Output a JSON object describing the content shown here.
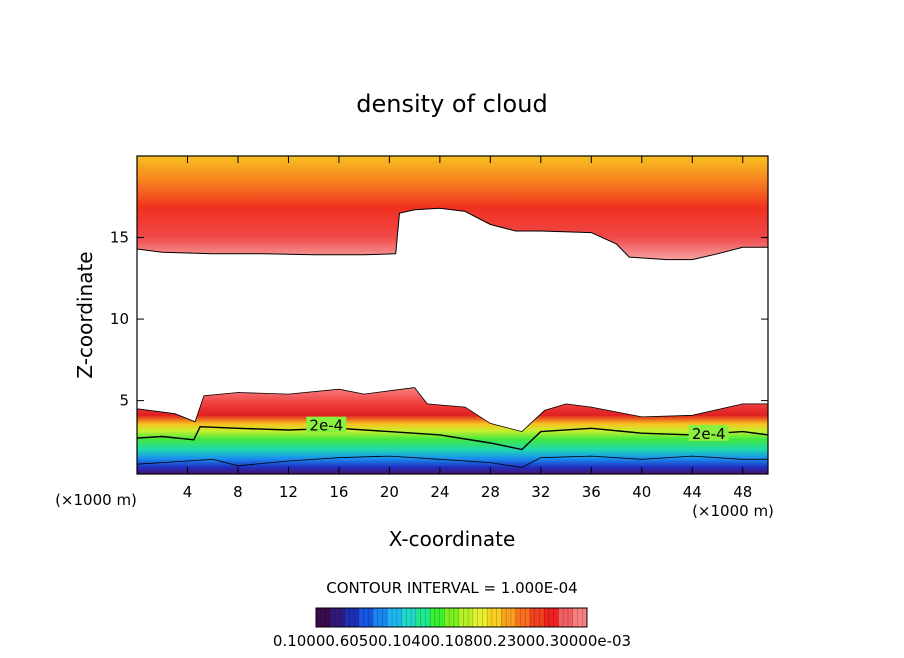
{
  "chart_data": {
    "type": "heatmap",
    "title": "density of cloud",
    "xlabel": "X-coordinate",
    "ylabel": "Z-coordinate",
    "x_unit": "(×1000 m)",
    "y_unit": "(×1000 m)",
    "xlim": [
      0,
      50
    ],
    "ylim": [
      0.5,
      20
    ],
    "x_ticks": [
      4,
      8,
      12,
      16,
      20,
      24,
      28,
      32,
      36,
      40,
      44,
      48
    ],
    "y_ticks": [
      5,
      10,
      15
    ],
    "contour_interval_text": "CONTOUR INTERVAL = 1.000E-04",
    "contour_labels": [
      {
        "text": "2e-4",
        "x": 15.0,
        "z": 3.4
      },
      {
        "text": "2e-4",
        "x": 45.3,
        "z": 2.9
      }
    ],
    "upper_cloud_base": [
      {
        "x": 0,
        "z": 14.3
      },
      {
        "x": 2,
        "z": 14.1
      },
      {
        "x": 6,
        "z": 14.0
      },
      {
        "x": 10,
        "z": 14.0
      },
      {
        "x": 14,
        "z": 13.95
      },
      {
        "x": 18,
        "z": 13.95
      },
      {
        "x": 20.5,
        "z": 14.0
      },
      {
        "x": 20.8,
        "z": 16.5
      },
      {
        "x": 22,
        "z": 16.7
      },
      {
        "x": 24,
        "z": 16.8
      },
      {
        "x": 26,
        "z": 16.6
      },
      {
        "x": 28,
        "z": 15.8
      },
      {
        "x": 30,
        "z": 15.4
      },
      {
        "x": 32,
        "z": 15.4
      },
      {
        "x": 36,
        "z": 15.3
      },
      {
        "x": 38,
        "z": 14.6
      },
      {
        "x": 39,
        "z": 13.8
      },
      {
        "x": 42,
        "z": 13.65
      },
      {
        "x": 44,
        "z": 13.65
      },
      {
        "x": 46,
        "z": 14.0
      },
      {
        "x": 48,
        "z": 14.4
      },
      {
        "x": 50,
        "z": 14.4
      }
    ],
    "lower_cloud_top": [
      {
        "x": 0,
        "z": 4.5
      },
      {
        "x": 3,
        "z": 4.2
      },
      {
        "x": 4.6,
        "z": 3.7
      },
      {
        "x": 5.3,
        "z": 5.3
      },
      {
        "x": 8,
        "z": 5.5
      },
      {
        "x": 12,
        "z": 5.4
      },
      {
        "x": 16,
        "z": 5.7
      },
      {
        "x": 18,
        "z": 5.4
      },
      {
        "x": 20,
        "z": 5.6
      },
      {
        "x": 22,
        "z": 5.8
      },
      {
        "x": 23,
        "z": 4.8
      },
      {
        "x": 26,
        "z": 4.6
      },
      {
        "x": 28,
        "z": 3.6
      },
      {
        "x": 30.5,
        "z": 3.1
      },
      {
        "x": 32.3,
        "z": 4.4
      },
      {
        "x": 34,
        "z": 4.8
      },
      {
        "x": 36,
        "z": 4.6
      },
      {
        "x": 40,
        "z": 4.0
      },
      {
        "x": 44,
        "z": 4.1
      },
      {
        "x": 48,
        "z": 4.8
      },
      {
        "x": 50,
        "z": 4.8
      }
    ],
    "contour_2e4": [
      {
        "x": 0,
        "z": 2.7
      },
      {
        "x": 2,
        "z": 2.8
      },
      {
        "x": 4.5,
        "z": 2.6
      },
      {
        "x": 5,
        "z": 3.4
      },
      {
        "x": 8,
        "z": 3.3
      },
      {
        "x": 12,
        "z": 3.2
      },
      {
        "x": 16,
        "z": 3.3
      },
      {
        "x": 20,
        "z": 3.1
      },
      {
        "x": 24,
        "z": 2.9
      },
      {
        "x": 28,
        "z": 2.4
      },
      {
        "x": 30.5,
        "z": 2.0
      },
      {
        "x": 32,
        "z": 3.1
      },
      {
        "x": 36,
        "z": 3.3
      },
      {
        "x": 40,
        "z": 3.0
      },
      {
        "x": 44,
        "z": 2.9
      },
      {
        "x": 48,
        "z": 3.1
      },
      {
        "x": 50,
        "z": 2.9
      }
    ],
    "contour_lower": [
      {
        "x": 0,
        "z": 1.1
      },
      {
        "x": 4,
        "z": 1.3
      },
      {
        "x": 6,
        "z": 1.4
      },
      {
        "x": 8,
        "z": 1.0
      },
      {
        "x": 12,
        "z": 1.3
      },
      {
        "x": 16,
        "z": 1.5
      },
      {
        "x": 20,
        "z": 1.6
      },
      {
        "x": 24,
        "z": 1.4
      },
      {
        "x": 28,
        "z": 1.2
      },
      {
        "x": 30.5,
        "z": 0.9
      },
      {
        "x": 32,
        "z": 1.5
      },
      {
        "x": 36,
        "z": 1.6
      },
      {
        "x": 40,
        "z": 1.4
      },
      {
        "x": 44,
        "z": 1.6
      },
      {
        "x": 48,
        "z": 1.4
      },
      {
        "x": 50,
        "z": 1.4
      }
    ],
    "colorbar": {
      "colors": [
        "#3a0a4a",
        "#301a7a",
        "#1f2fb5",
        "#1656e0",
        "#1b86f0",
        "#1fb5f0",
        "#20d8c8",
        "#20e890",
        "#38f030",
        "#7af020",
        "#b8f028",
        "#e8f030",
        "#f8d020",
        "#f8a020",
        "#f87020",
        "#f04020",
        "#f02020",
        "#f06060",
        "#f88080"
      ],
      "tick_labels_text": "0.10000.60500.10400.10800.23000.30000e-03"
    }
  }
}
